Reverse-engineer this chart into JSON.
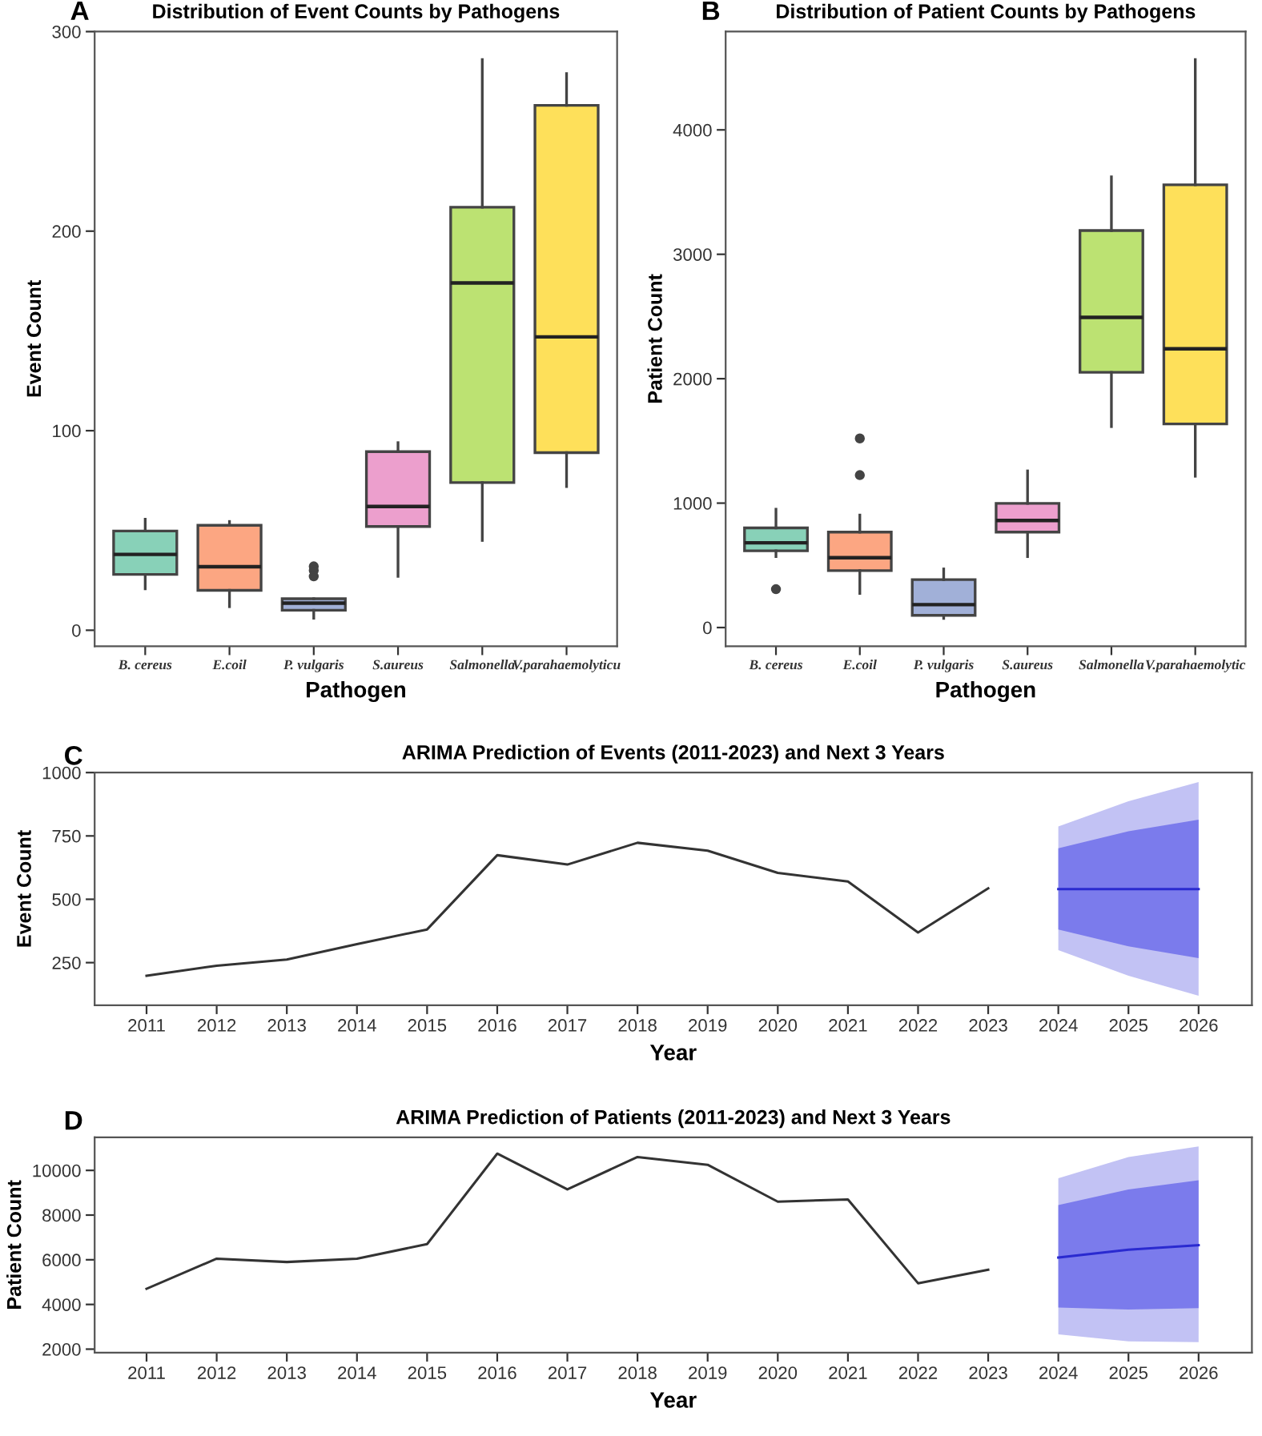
{
  "chart_data": [
    {
      "type": "box",
      "title": "Distribution of Event Counts by Pathogens",
      "xlabel": "Pathogen",
      "ylabel": "Event Count",
      "annotations": [
        "A"
      ],
      "categories": [
        "B. cereus",
        "E.coil",
        "P. vulgaris",
        "S.aureus",
        "Salmonella",
        "V.parahaemolyticu"
      ],
      "colors": [
        "#88d1b8",
        "#fca682",
        "#a1b0d8",
        "#ec9fcd",
        "#bce272",
        "#fee05a"
      ],
      "boxes": [
        {
          "low": 20.8,
          "q1": 28,
          "median": 38,
          "q3": 49.7,
          "high": 55.6
        },
        {
          "low": 11.8,
          "q1": 20,
          "median": 31.8,
          "q3": 52.6,
          "high": 54.5
        },
        {
          "low": 6,
          "q1": 10,
          "median": 13.6,
          "q3": 15.8,
          "high": 15.8,
          "outliers": [
            32,
            30,
            27
          ]
        },
        {
          "low": 27,
          "q1": 52,
          "median": 62,
          "q3": 89.5,
          "high": 94
        },
        {
          "low": 45,
          "q1": 74,
          "median": 174,
          "q3": 212,
          "high": 286
        },
        {
          "low": 72,
          "q1": 89,
          "median": 147,
          "q3": 263,
          "high": 279
        }
      ],
      "ylim": [
        -8,
        300
      ],
      "yticks": [
        0,
        100,
        200,
        300
      ],
      "grid": false,
      "legend": false
    },
    {
      "type": "box",
      "title": "Distribution of Patient Counts by Pathogens",
      "xlabel": "Pathogen",
      "ylabel": "Patient Count",
      "annotations": [
        "B"
      ],
      "categories": [
        "B. cereus",
        "E.coil",
        "P. vulgaris",
        "S.aureus",
        "Salmonella",
        "V.parahaemolytic"
      ],
      "colors": [
        "#88d1b8",
        "#fca682",
        "#a1b0d8",
        "#ec9fcd",
        "#bce272",
        "#fee05a"
      ],
      "boxes": [
        {
          "low": 570,
          "q1": 617,
          "median": 681,
          "q3": 801,
          "high": 951,
          "outliers": [
            308
          ]
        },
        {
          "low": 274,
          "q1": 458,
          "median": 561,
          "q3": 767,
          "high": 904,
          "outliers": [
            1520,
            1225
          ]
        },
        {
          "low": 73,
          "q1": 98,
          "median": 184,
          "q3": 385,
          "high": 471
        },
        {
          "low": 570,
          "q1": 767,
          "median": 861,
          "q3": 998,
          "high": 1259
        },
        {
          "low": 1615,
          "q1": 2051,
          "median": 2493,
          "q3": 3191,
          "high": 3623
        },
        {
          "low": 1216,
          "q1": 1636,
          "median": 2240,
          "q3": 3559,
          "high": 4565
        }
      ],
      "ylim": [
        -150,
        4790
      ],
      "yticks": [
        0,
        1000,
        2000,
        3000,
        4000
      ],
      "grid": false,
      "legend": false
    },
    {
      "type": "line",
      "title": "ARIMA Prediction of Events (2011-2023) and Next 3 Years",
      "xlabel": "Year",
      "ylabel": "Event Count",
      "annotations": [
        "C"
      ],
      "series": [
        {
          "color": "#333333",
          "x": [
            2011,
            2012,
            2013,
            2014,
            2015,
            2016,
            2017,
            2018,
            2019,
            2020,
            2021,
            2022,
            2023
          ],
          "values": [
            198,
            238,
            262,
            323,
            381,
            674,
            637,
            723,
            692,
            604,
            570,
            369,
            543
          ]
        },
        {
          "color": "#c2c2f4",
          "x": [
            2024,
            2025,
            2026
          ],
          "values": [
            null,
            null,
            null
          ],
          "lower": [
            299,
            198,
            119
          ],
          "upper": [
            787,
            887,
            963
          ]
        },
        {
          "color": "#7b7bec",
          "x": [
            2024,
            2025,
            2026
          ],
          "values": [
            null,
            null,
            null
          ],
          "lower": [
            381,
            314,
            268
          ],
          "upper": [
            701,
            768,
            814
          ]
        },
        {
          "color": "#2a2ad0",
          "x": [
            2024,
            2025,
            2026
          ],
          "values": [
            540,
            540,
            540
          ]
        }
      ],
      "xlim": [
        2010.26,
        2026.76
      ],
      "xticks": [
        2011,
        2012,
        2013,
        2014,
        2015,
        2016,
        2017,
        2018,
        2019,
        2020,
        2021,
        2022,
        2023,
        2024,
        2025,
        2026
      ],
      "ylim": [
        82,
        1000
      ],
      "yticks": [
        250,
        500,
        750,
        1000
      ],
      "grid": false,
      "legend": false,
      "marker": "none",
      "line_style": "solid"
    },
    {
      "type": "line",
      "title": "ARIMA Prediction of Patients (2011-2023) and Next 3 Years",
      "xlabel": "Year",
      "ylabel": "Patient Count",
      "annotations": [
        "D"
      ],
      "series": [
        {
          "color": "#333333",
          "x": [
            2011,
            2012,
            2013,
            2014,
            2015,
            2016,
            2017,
            2018,
            2019,
            2020,
            2021,
            2022,
            2023
          ],
          "values": [
            4700,
            6050,
            5900,
            6050,
            6700,
            10750,
            9150,
            10600,
            10250,
            8600,
            8700,
            4950,
            5550
          ]
        },
        {
          "color": "#c2c2f4",
          "x": [
            2024,
            2025,
            2026
          ],
          "values": [
            null,
            null,
            null
          ],
          "lower": [
            2664,
            2348,
            2316
          ],
          "upper": [
            9652,
            10601,
            11075
          ]
        },
        {
          "color": "#7b7bec",
          "x": [
            2024,
            2025,
            2026
          ],
          "values": [
            null,
            null,
            null
          ],
          "lower": [
            3866,
            3771,
            3834
          ],
          "upper": [
            8450,
            9146,
            9557
          ]
        },
        {
          "color": "#2a2ad0",
          "x": [
            2024,
            2025,
            2026
          ],
          "values": [
            6100,
            6450,
            6650
          ]
        }
      ],
      "xlim": [
        2010.26,
        2026.76
      ],
      "xticks": [
        2011,
        2012,
        2013,
        2014,
        2015,
        2016,
        2017,
        2018,
        2019,
        2020,
        2021,
        2022,
        2023,
        2024,
        2025,
        2026
      ],
      "ylim": [
        1840,
        11480
      ],
      "yticks": [
        2000,
        4000,
        6000,
        8000,
        10000
      ],
      "grid": false,
      "legend": false,
      "marker": "none",
      "line_style": "solid"
    }
  ]
}
